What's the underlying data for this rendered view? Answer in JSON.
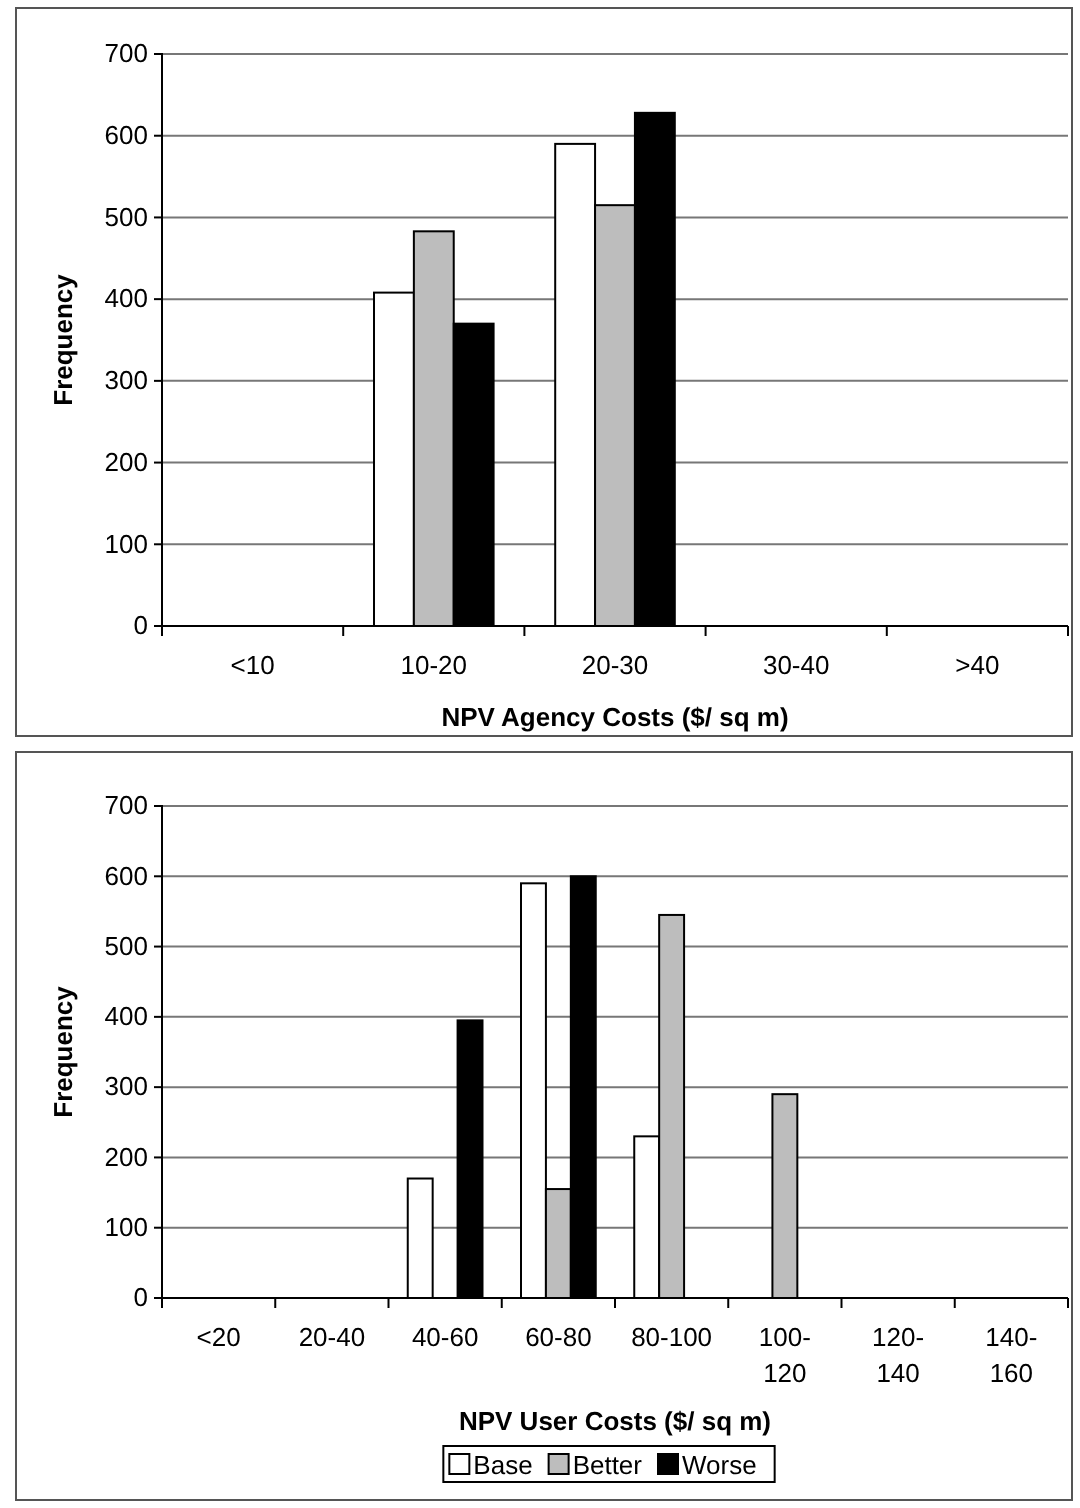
{
  "chart_data": [
    {
      "type": "bar",
      "xlabel": "NPV Agency Costs ($/ sq m)",
      "ylabel": "Frequency",
      "categories": [
        "<10",
        "10-20",
        "20-30",
        "30-40",
        ">40"
      ],
      "series": [
        {
          "color": "#ffffff",
          "values": [
            0,
            408,
            590,
            0,
            0
          ]
        },
        {
          "color": "#bdbdbd",
          "values": [
            0,
            483,
            515,
            0,
            0
          ]
        },
        {
          "color": "#000000",
          "values": [
            0,
            370,
            628,
            0,
            0
          ]
        }
      ],
      "ylim": [
        0,
        700
      ],
      "yticks": [
        0,
        100,
        200,
        300,
        400,
        500,
        600,
        700
      ],
      "grid": "y",
      "legend": false
    },
    {
      "type": "bar",
      "xlabel": "NPV User Costs ($/ sq m)",
      "ylabel": "Frequency",
      "categories": [
        "<20",
        "20-40",
        "40-60",
        "60-80",
        "80-100",
        "100-120",
        "120-140",
        "140-160"
      ],
      "series": [
        {
          "name": "Base",
          "color": "#ffffff",
          "values": [
            0,
            0,
            170,
            590,
            230,
            0,
            0,
            0
          ]
        },
        {
          "name": "Better",
          "color": "#bdbdbd",
          "values": [
            0,
            0,
            0,
            155,
            545,
            290,
            0,
            0
          ]
        },
        {
          "name": "Worse",
          "color": "#000000",
          "values": [
            0,
            0,
            395,
            600,
            0,
            0,
            0,
            0
          ]
        }
      ],
      "ylim": [
        0,
        700
      ],
      "yticks": [
        0,
        100,
        200,
        300,
        400,
        500,
        600,
        700
      ],
      "grid": "y",
      "legend": "bottom"
    }
  ]
}
